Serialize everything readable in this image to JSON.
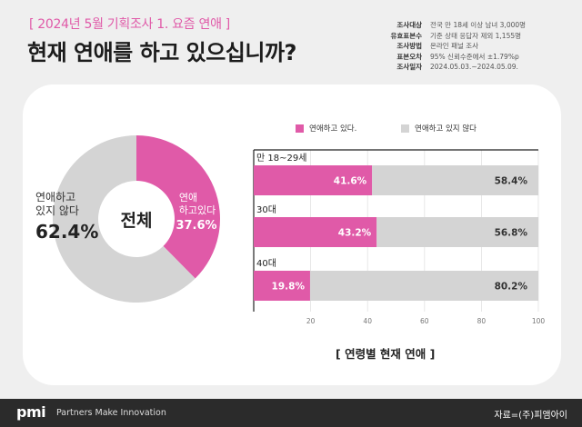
{
  "header": {
    "tag": "[ 2024년 5월 기획조사 1. 요즘 연애 ]",
    "title": "현재 연애를 하고 있으십니까?"
  },
  "survey_info": [
    {
      "key": "조사대상",
      "value": "전국 만 18세 이상 남녀 3,000명"
    },
    {
      "key": "유효표본수",
      "value": "기준 상태 응답자 제외 1,155명"
    },
    {
      "key": "조사방법",
      "value": "온라인 패널 조사"
    },
    {
      "key": "표본오차",
      "value": "95% 신뢰수준에서 ±1.79%p"
    },
    {
      "key": "조사일자",
      "value": "2024.05.03.~2024.05.09."
    }
  ],
  "colors": {
    "dating": "#e05aa8",
    "not_dating": "#d4d4d4",
    "accent": "#e05aa8"
  },
  "chart_data": [
    {
      "type": "pie",
      "center_label": "전체",
      "slices": [
        {
          "label": "연애하고 있다",
          "value": 37.6,
          "label_lines": [
            "연애",
            "하고있다"
          ],
          "value_text": "37.6%"
        },
        {
          "label": "연애하고 있지 않다",
          "value": 62.4,
          "label_lines": [
            "연애하고",
            "있지 않다"
          ],
          "value_text": "62.4%"
        }
      ]
    },
    {
      "type": "bar",
      "orientation": "horizontal-stacked",
      "title": "[ 연령별 현재 연애 ]",
      "legend": [
        "연애하고 있다.",
        "연애하고 있지 않다"
      ],
      "categories": [
        "만 18~29세",
        "30대",
        "40대"
      ],
      "series": [
        {
          "name": "연애하고 있다.",
          "values": [
            41.6,
            43.2,
            19.8
          ],
          "labels": [
            "41.6%",
            "43.2%",
            "19.8%"
          ]
        },
        {
          "name": "연애하고 있지 않다",
          "values": [
            58.4,
            56.8,
            80.2
          ],
          "labels": [
            "58.4%",
            "56.8%",
            "80.2%"
          ]
        }
      ],
      "xlim": [
        0,
        100
      ],
      "xticks": [
        20,
        40,
        60,
        80,
        100
      ]
    }
  ],
  "footer": {
    "logo": "pmi",
    "slogan": "Partners Make Innovation",
    "source": "자료=(주)피앰아이"
  }
}
